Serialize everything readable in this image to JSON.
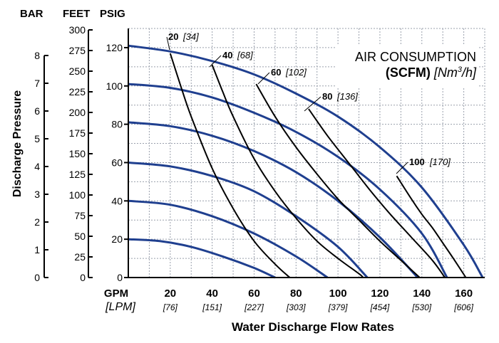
{
  "chart_data": {
    "type": "line",
    "title": "AIR CONSUMPTION",
    "subtitle_bold": "(SCFM)",
    "subtitle_italic": "[Nm",
    "subtitle_sup": "3",
    "subtitle_end": "/h]",
    "xlabel": "Water Discharge Flow Rates",
    "ylabel": "Discharge Pressure",
    "x_unit": "GPM",
    "x_unit_alt": "[LPM]",
    "y_units": [
      "BAR",
      "FEET",
      "PSIG"
    ],
    "x_range": [
      0,
      170
    ],
    "y_range_psig": [
      0,
      130
    ],
    "x_ticks": [
      {
        "gpm": "20",
        "lpm": "[76]",
        "value": 20
      },
      {
        "gpm": "40",
        "lpm": "[151]",
        "value": 40
      },
      {
        "gpm": "60",
        "lpm": "[227]",
        "value": 60
      },
      {
        "gpm": "80",
        "lpm": "[303]",
        "value": 80
      },
      {
        "gpm": "100",
        "lpm": "[379]",
        "value": 100
      },
      {
        "gpm": "120",
        "lpm": "[454]",
        "value": 120
      },
      {
        "gpm": "140",
        "lpm": "[530]",
        "value": 140
      },
      {
        "gpm": "160",
        "lpm": "[606]",
        "value": 160
      }
    ],
    "psig_ticks": [
      "0",
      "20",
      "40",
      "60",
      "80",
      "100",
      "120"
    ],
    "feet_ticks": [
      "0",
      "25",
      "50",
      "75",
      "100",
      "125",
      "150",
      "175",
      "200",
      "225",
      "250",
      "275",
      "300"
    ],
    "bar_ticks": [
      "0",
      "1",
      "2",
      "3",
      "4",
      "5",
      "6",
      "7",
      "8"
    ],
    "grid": true,
    "pressure_curves": [
      {
        "x": [
          0,
          15,
          30,
          45,
          60,
          70
        ],
        "y": [
          20,
          19,
          16,
          11,
          5,
          0
        ]
      },
      {
        "x": [
          0,
          20,
          40,
          60,
          80,
          95
        ],
        "y": [
          40,
          38,
          32,
          23,
          11,
          0
        ]
      },
      {
        "x": [
          0,
          20,
          40,
          60,
          80,
          100,
          114
        ],
        "y": [
          60,
          58,
          53,
          45,
          32,
          16,
          0
        ]
      },
      {
        "x": [
          0,
          20,
          40,
          60,
          80,
          100,
          120,
          138
        ],
        "y": [
          81,
          79,
          74,
          66,
          55,
          40,
          21,
          0
        ]
      },
      {
        "x": [
          0,
          20,
          40,
          60,
          80,
          100,
          120,
          140,
          152
        ],
        "y": [
          101,
          99,
          94,
          86,
          76,
          63,
          46,
          23,
          0
        ]
      },
      {
        "x": [
          0,
          20,
          40,
          60,
          80,
          100,
          120,
          140,
          160,
          169
        ],
        "y": [
          121,
          118,
          113,
          106,
          96,
          84,
          68,
          47,
          17,
          0
        ]
      }
    ],
    "air_curves": [
      {
        "label": "20",
        "alt": "[34]",
        "x": [
          20,
          25,
          30,
          40,
          50,
          60,
          70,
          77
        ],
        "y": [
          117,
          100,
          84,
          57,
          36,
          19,
          7,
          0
        ]
      },
      {
        "label": "40",
        "alt": "[68]",
        "x": [
          40,
          45,
          50,
          60,
          70,
          80,
          90,
          100,
          110,
          112
        ],
        "y": [
          111,
          97,
          84,
          62,
          45,
          31,
          19,
          10,
          2,
          0
        ]
      },
      {
        "label": "60",
        "alt": "[102]",
        "x": [
          61,
          70,
          80,
          90,
          100,
          110,
          120,
          130,
          139
        ],
        "y": [
          101,
          84,
          68,
          54,
          41,
          30,
          19,
          9,
          0
        ]
      },
      {
        "label": "80",
        "alt": "[136]",
        "x": [
          86,
          95,
          105,
          115,
          125,
          135,
          145,
          151
        ],
        "y": [
          88,
          74,
          60,
          46,
          33,
          21,
          9,
          0
        ]
      },
      {
        "label": "100",
        "alt": "[170]",
        "x": [
          128,
          135,
          140,
          145,
          150,
          155,
          161
        ],
        "y": [
          53,
          41,
          33,
          26,
          18,
          10,
          0
        ]
      }
    ],
    "colors": {
      "pressure_curve": "#1f3f8f",
      "air_curve": "#000000",
      "grid": "#9aa0ac"
    }
  }
}
